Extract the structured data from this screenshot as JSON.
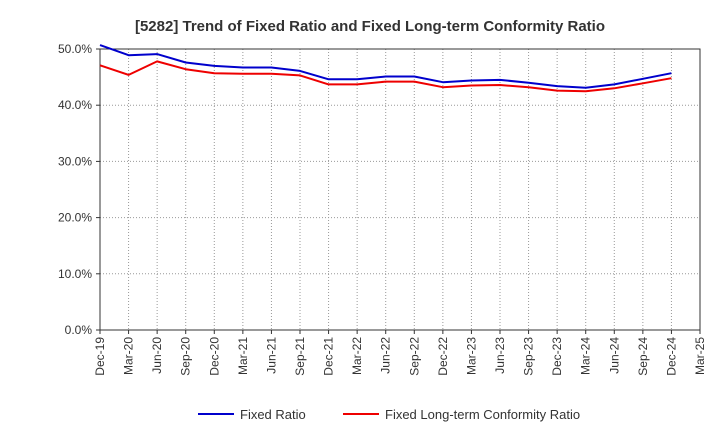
{
  "chart_data": {
    "type": "line",
    "title": "[5282]  Trend of Fixed Ratio and Fixed Long-term Conformity Ratio",
    "xlabel": "",
    "ylabel": "",
    "x": [
      "Dec-19",
      "Mar-20",
      "Jun-20",
      "Sep-20",
      "Dec-20",
      "Mar-21",
      "Jun-21",
      "Sep-21",
      "Dec-21",
      "Mar-22",
      "Jun-22",
      "Sep-22",
      "Dec-22",
      "Mar-23",
      "Jun-23",
      "Sep-23",
      "Dec-23",
      "Mar-24",
      "Jun-24",
      "Sep-24",
      "Dec-24",
      "Mar-25"
    ],
    "ylim": [
      0,
      50
    ],
    "yticks": [
      0,
      10,
      20,
      30,
      40,
      50
    ],
    "ytick_labels": [
      "0.0%",
      "10.0%",
      "20.0%",
      "30.0%",
      "40.0%",
      "50.0%"
    ],
    "grid": true,
    "legend_position": "bottom",
    "series": [
      {
        "name": "Fixed Ratio",
        "color": "#0000cc",
        "values": [
          50.7,
          48.9,
          49.1,
          47.6,
          47.0,
          46.7,
          46.7,
          46.1,
          44.6,
          44.6,
          45.1,
          45.1,
          44.1,
          44.4,
          44.5,
          44.0,
          43.4,
          43.1,
          43.7,
          44.7,
          45.7,
          null
        ]
      },
      {
        "name": "Fixed Long-term Conformity Ratio",
        "color": "#ee0000",
        "values": [
          47.1,
          45.4,
          47.8,
          46.4,
          45.7,
          45.6,
          45.6,
          45.3,
          43.7,
          43.7,
          44.2,
          44.2,
          43.2,
          43.5,
          43.6,
          43.2,
          42.6,
          42.5,
          43.0,
          43.9,
          44.8,
          null
        ]
      }
    ]
  }
}
